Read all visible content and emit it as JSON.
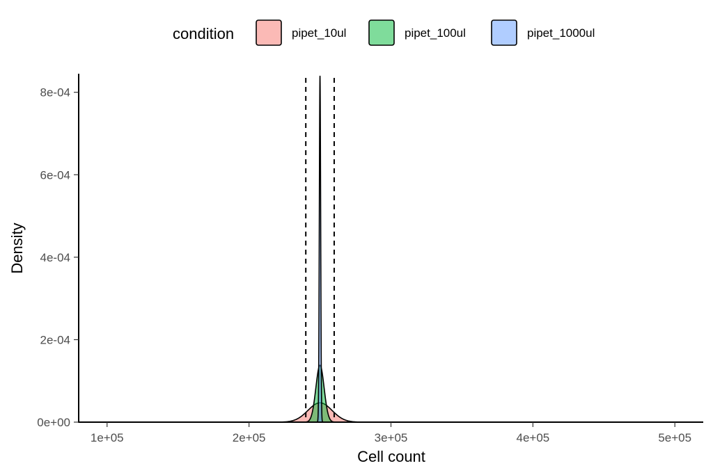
{
  "chart_data": {
    "type": "area",
    "xlabel": "Cell count",
    "ylabel": "Density",
    "xlim": [
      80000,
      520000
    ],
    "ylim": [
      0,
      0.000845
    ],
    "xticks": [
      100000,
      200000,
      300000,
      400000,
      500000
    ],
    "xtick_labels": [
      "1e+05",
      "2e+05",
      "3e+05",
      "4e+05",
      "5e+05"
    ],
    "yticks": [
      0,
      0.0002,
      0.0004,
      0.0006,
      0.0008
    ],
    "ytick_labels": [
      "0e+00",
      "2e-04",
      "4e-04",
      "6e-04",
      "8e-04"
    ],
    "grid": false,
    "legend": {
      "title": "condition",
      "placement": "top"
    },
    "vlines": [
      240000,
      260000
    ],
    "series": [
      {
        "name": "pipet_10ul",
        "color": "#F8766D",
        "mean": 250000,
        "sd": 8500,
        "peak": 4.69e-05
      },
      {
        "name": "pipet_100ul",
        "color": "#00BA38",
        "mean": 250000,
        "sd": 2900,
        "peak": 0.000138
      },
      {
        "name": "pipet_1000ul",
        "color": "#619CFF",
        "mean": 250000,
        "sd": 475,
        "peak": 0.00084
      }
    ]
  }
}
